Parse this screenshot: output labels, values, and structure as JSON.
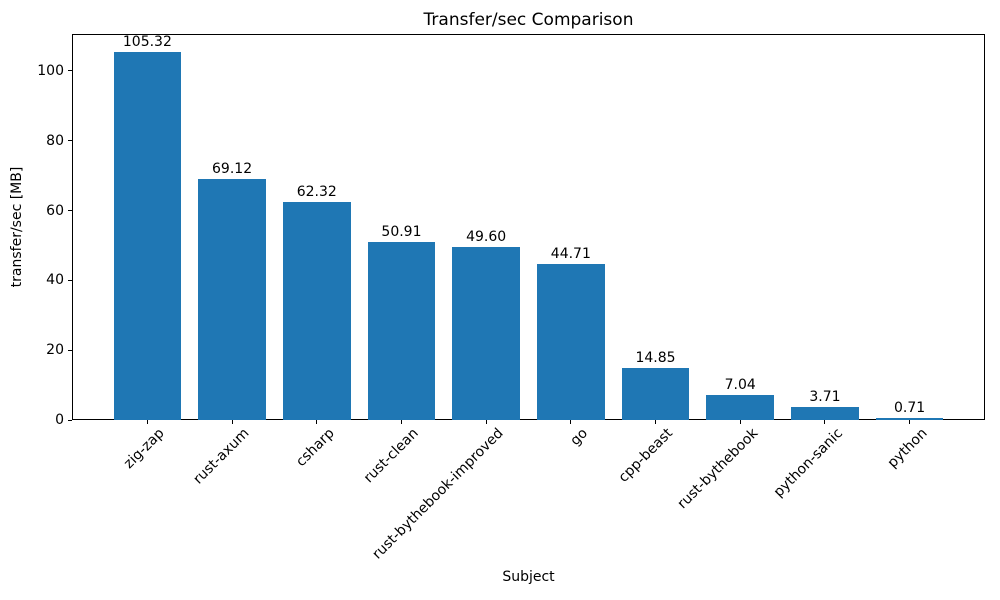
{
  "figure": {
    "background": "#ffffff",
    "frame_color": "#000000"
  },
  "chart_data": {
    "type": "bar",
    "title": "Transfer/sec Comparison",
    "xlabel": "Subject",
    "ylabel": "transfer/sec [MB]",
    "categories": [
      "zig-zap",
      "rust-axum",
      "csharp",
      "rust-clean",
      "rust-bythebook-improved",
      "go",
      "cpp-beast",
      "rust-bythebook",
      "python-sanic",
      "python"
    ],
    "values": [
      105.32,
      69.12,
      62.32,
      50.91,
      49.6,
      44.71,
      14.85,
      7.04,
      3.71,
      0.71
    ],
    "value_labels": [
      "105.32",
      "69.12",
      "62.32",
      "50.91",
      "49.60",
      "44.71",
      "14.85",
      "7.04",
      "3.71",
      "0.71"
    ],
    "yticks": [
      0,
      20,
      40,
      60,
      80,
      100
    ],
    "ylim": [
      0,
      110.6
    ],
    "bar_color": "#1f77b4",
    "grid": false,
    "legend": null,
    "xtick_rotation_deg": 45
  }
}
